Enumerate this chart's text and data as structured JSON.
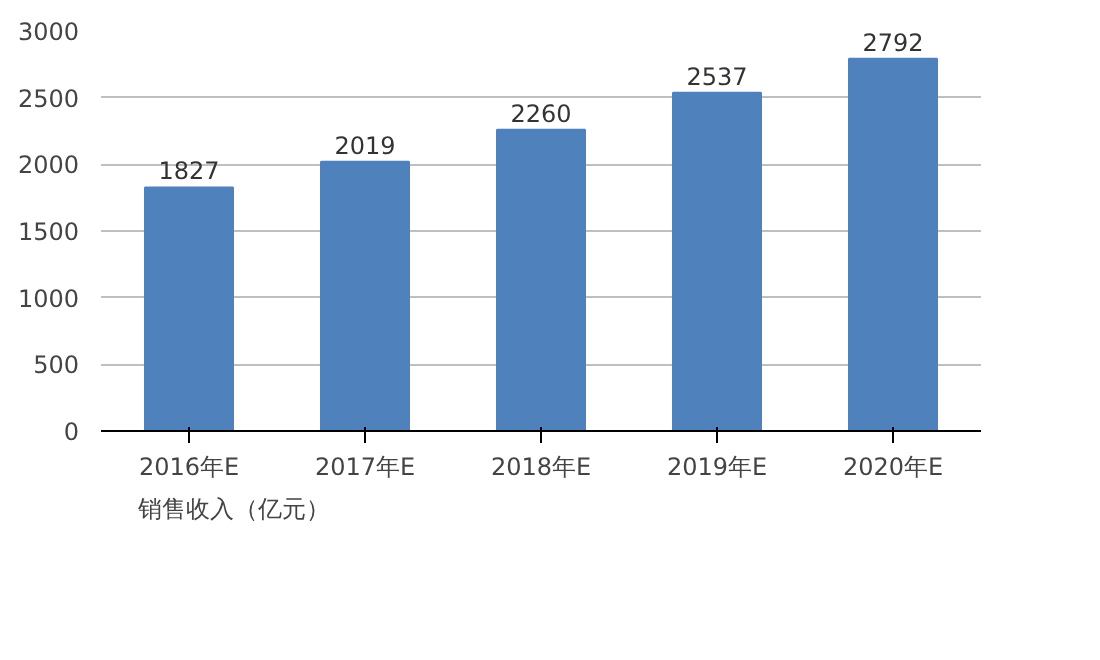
{
  "chart_data": {
    "type": "bar",
    "categories": [
      "2016年E",
      "2017年E",
      "2018年E",
      "2019年E",
      "2020年E"
    ],
    "series": [
      {
        "name": "销售收入（亿元）",
        "color": "#4f81bd",
        "values": [
          1827,
          2019,
          2260,
          2537,
          2792
        ]
      }
    ],
    "ylim": [
      0,
      3000
    ],
    "yticks": [
      0,
      500,
      1000,
      1500,
      2000,
      2500,
      3000
    ],
    "grid": "y",
    "legend": "bottom left",
    "data_labels": true
  }
}
